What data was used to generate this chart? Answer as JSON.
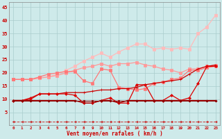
{
  "x": [
    0,
    1,
    2,
    3,
    4,
    5,
    6,
    7,
    8,
    9,
    10,
    11,
    12,
    13,
    14,
    15,
    16,
    17,
    18,
    19,
    20,
    21,
    22,
    23
  ],
  "xlabel": "Vent moyen/en rafales ( km/h )",
  "ylabel_ticks": [
    5,
    10,
    15,
    20,
    25,
    30,
    35,
    40,
    45
  ],
  "ylim": [
    0,
    47
  ],
  "xlim": [
    -0.5,
    23.5
  ],
  "bg_color": "#ceeaea",
  "grid_color": "#aacccc",
  "series": {
    "line_lightest": {
      "color": "#ffbbbb",
      "data": [
        17.5,
        17.5,
        17.5,
        18.0,
        18.5,
        19.5,
        21.0,
        22.5,
        24.5,
        26.0,
        27.5,
        26.0,
        28.0,
        29.5,
        31.0,
        31.0,
        29.0,
        29.5,
        29.0,
        29.5,
        29.0,
        35.0,
        37.5,
        42.0
      ],
      "marker": "s",
      "markersize": 2.5,
      "linewidth": 0.9
    },
    "line_light": {
      "color": "#ff9999",
      "data": [
        17.5,
        17.5,
        17.5,
        18.0,
        18.5,
        19.0,
        20.0,
        21.0,
        22.0,
        22.5,
        23.5,
        22.5,
        23.5,
        23.5,
        24.0,
        23.0,
        22.5,
        21.5,
        21.0,
        20.0,
        21.5,
        21.5,
        22.5,
        23.0
      ],
      "marker": "s",
      "markersize": 2.5,
      "linewidth": 0.9
    },
    "line_mid": {
      "color": "#ff7777",
      "data": [
        17.5,
        17.5,
        17.5,
        18.5,
        19.5,
        20.0,
        20.5,
        20.5,
        17.0,
        16.0,
        21.5,
        21.0,
        14.5,
        14.0,
        13.5,
        14.0,
        16.0,
        16.5,
        17.5,
        18.0,
        21.0,
        21.0,
        22.0,
        22.5
      ],
      "marker": "s",
      "markersize": 2.5,
      "linewidth": 0.9
    },
    "line_dark_upper": {
      "color": "#cc0000",
      "data": [
        9.5,
        9.5,
        10.0,
        12.0,
        12.0,
        12.0,
        12.5,
        12.5,
        12.5,
        13.0,
        13.5,
        13.5,
        14.0,
        14.0,
        14.5,
        15.5,
        16.0,
        16.5,
        17.0,
        17.5,
        19.5,
        21.5,
        22.5,
        23.0
      ],
      "marker": "+",
      "markersize": 3,
      "linewidth": 0.9
    },
    "line_dark_mid": {
      "color": "#dd0000",
      "data": [
        9.5,
        9.5,
        10.5,
        12.0,
        12.0,
        12.0,
        12.0,
        11.5,
        8.5,
        8.5,
        9.5,
        10.5,
        8.5,
        8.5,
        15.5,
        15.5,
        9.5,
        9.5,
        11.5,
        9.5,
        10.5,
        16.0,
        22.5,
        22.5
      ],
      "marker": "D",
      "markersize": 2,
      "linewidth": 0.9
    },
    "line_dark_lower": {
      "color": "#aa0000",
      "data": [
        9.5,
        9.5,
        9.5,
        9.5,
        9.5,
        9.5,
        9.5,
        9.5,
        8.5,
        8.5,
        9.5,
        9.5,
        8.5,
        9.5,
        9.5,
        9.5,
        9.5,
        9.5,
        9.5,
        9.5,
        9.5,
        9.5,
        9.5,
        9.5
      ],
      "marker": "+",
      "markersize": 3,
      "linewidth": 0.9
    },
    "line_flat": {
      "color": "#880000",
      "data": [
        9.5,
        9.5,
        9.5,
        9.5,
        9.5,
        9.5,
        9.5,
        9.5,
        9.5,
        9.5,
        9.5,
        9.5,
        9.5,
        9.5,
        9.5,
        9.5,
        9.5,
        9.5,
        9.5,
        9.5,
        9.5,
        9.5,
        9.5,
        9.5
      ],
      "marker": "s",
      "markersize": 1.5,
      "linewidth": 0.8
    },
    "line_bottom": {
      "color": "#cc3333",
      "data": [
        1.5,
        1.5,
        1.5,
        1.5,
        1.5,
        1.5,
        1.5,
        1.5,
        1.5,
        1.5,
        1.5,
        1.5,
        1.5,
        1.5,
        1.5,
        1.5,
        1.5,
        1.5,
        1.5,
        1.5,
        1.5,
        1.5,
        1.5,
        1.5
      ],
      "marker": "<",
      "markersize": 2,
      "linewidth": 0.7,
      "linestyle": "--"
    }
  }
}
